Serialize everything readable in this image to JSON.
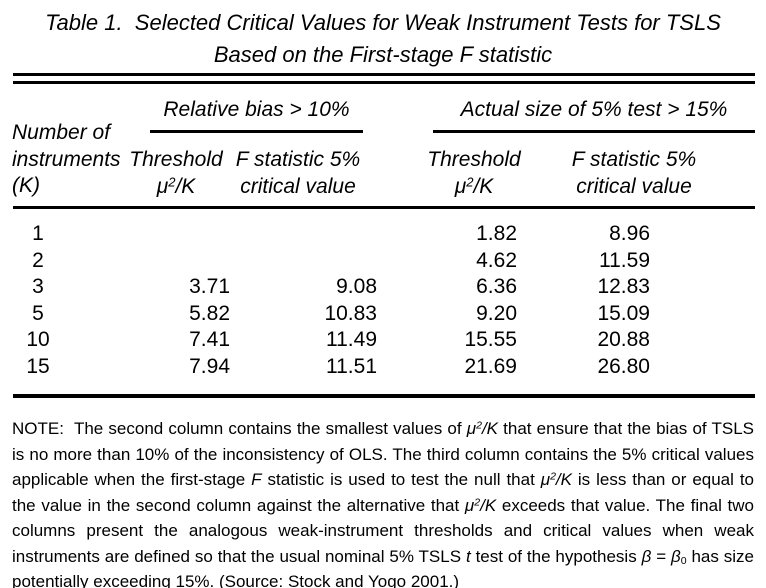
{
  "title": {
    "line1": "Table 1.  Selected Critical Values for Weak Instrument Tests for TSLS",
    "line2": "Based on the First-stage F statistic"
  },
  "table": {
    "group_headers": [
      {
        "label": "Relative bias > 10%"
      },
      {
        "label": "Actual size of 5% test > 15%"
      }
    ],
    "stub_header": {
      "line1": "Number of",
      "line2": "instruments",
      "line3": "(K)"
    },
    "column_headers": [
      {
        "line1": "Threshold",
        "line2": [
          {
            "t": "μ"
          },
          {
            "t": "2",
            "s": "sup"
          },
          {
            "t": "/K"
          }
        ]
      },
      {
        "line1": "F statistic 5%",
        "line2": [
          {
            "t": "critical value"
          }
        ]
      },
      {
        "line1": "Threshold",
        "line2": [
          {
            "t": "μ"
          },
          {
            "t": "2",
            "s": "sup"
          },
          {
            "t": "/K"
          }
        ]
      },
      {
        "line1": "F statistic 5%",
        "line2": [
          {
            "t": "critical value"
          }
        ]
      }
    ],
    "rows": [
      [
        "1",
        "",
        "",
        "1.82",
        "8.96"
      ],
      [
        "2",
        "",
        "",
        "4.62",
        "11.59"
      ],
      [
        "3",
        "3.71",
        "9.08",
        "6.36",
        "12.83"
      ],
      [
        "5",
        "5.82",
        "10.83",
        "9.20",
        "15.09"
      ],
      [
        "10",
        "7.41",
        "11.49",
        "15.55",
        "20.88"
      ],
      [
        "15",
        "7.94",
        "11.51",
        "21.69",
        "26.80"
      ]
    ]
  },
  "note": {
    "segments": [
      {
        "t": "NOTE:  The second column contains the smallest values of "
      },
      {
        "t": "μ",
        "s": "it"
      },
      {
        "t": "2",
        "s": "it sup"
      },
      {
        "t": "/K",
        "s": "it"
      },
      {
        "t": " that ensure that the bias of TSLS is no more than 10% of the inconsistency of OLS. The third column contains the 5% critical values applicable when the first-stage "
      },
      {
        "t": "F",
        "s": "it"
      },
      {
        "t": " statistic is used to test the null that "
      },
      {
        "t": "μ",
        "s": "it"
      },
      {
        "t": "2",
        "s": "it sup"
      },
      {
        "t": "/K",
        "s": "it"
      },
      {
        "t": " is less than or equal to the value in the second column against the alternative that "
      },
      {
        "t": "μ",
        "s": "it"
      },
      {
        "t": "2",
        "s": "it sup"
      },
      {
        "t": "/K",
        "s": "it"
      },
      {
        "t": " exceeds that value. The final two columns present the analogous weak-instrument thresholds and critical values when weak instruments are defined so that the usual nominal 5% TSLS "
      },
      {
        "t": "t",
        "s": "it"
      },
      {
        "t": " test of the hypothesis "
      },
      {
        "t": "β",
        "s": "it"
      },
      {
        "t": " = "
      },
      {
        "t": "β",
        "s": "it"
      },
      {
        "t": "0",
        "s": "sub"
      },
      {
        "t": " has size potentially exceeding 15%. (Source: Stock and Yogo 2001.)"
      }
    ]
  },
  "colors": {
    "text": "#000000",
    "background": "#ffffff",
    "rule": "#000000"
  }
}
